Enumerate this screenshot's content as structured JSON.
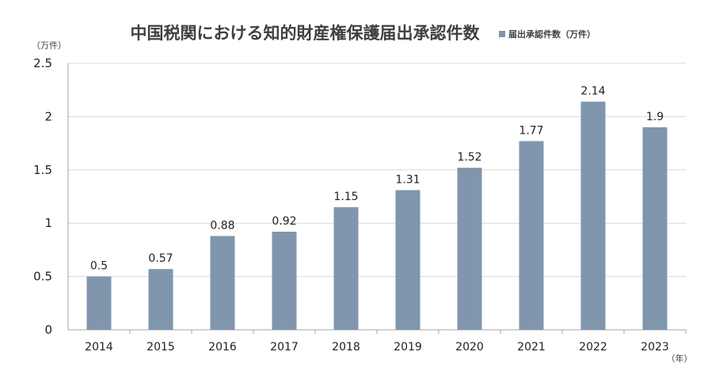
{
  "chart_data": {
    "type": "bar",
    "title": "中国税関における知的財産権保護届出承認件数",
    "legend": {
      "label": "届出承認件数（万件）",
      "position": "top-right",
      "color": "#7f96ad"
    },
    "ylabel": "（万件）",
    "xlabel": "（年）",
    "categories": [
      "2014",
      "2015",
      "2016",
      "2017",
      "2018",
      "2019",
      "2020",
      "2021",
      "2022",
      "2023"
    ],
    "series": [
      {
        "name": "届出承認件数（万件）",
        "values": [
          0.5,
          0.57,
          0.88,
          0.92,
          1.15,
          1.31,
          1.52,
          1.77,
          2.14,
          1.9
        ],
        "value_labels": [
          "0.5",
          "0.57",
          "0.88",
          "0.92",
          "1.15",
          "1.31",
          "1.52",
          "1.77",
          "2.14",
          "1.9"
        ]
      }
    ],
    "ylim": [
      0,
      2.5
    ],
    "yticks": [
      "0",
      "0.5",
      "1",
      "1.5",
      "2",
      "2.5"
    ],
    "grid": true,
    "colors": {
      "bar": "#7f96ad",
      "grid": "#d9d9d9",
      "axis": "#a6a6a6"
    }
  }
}
